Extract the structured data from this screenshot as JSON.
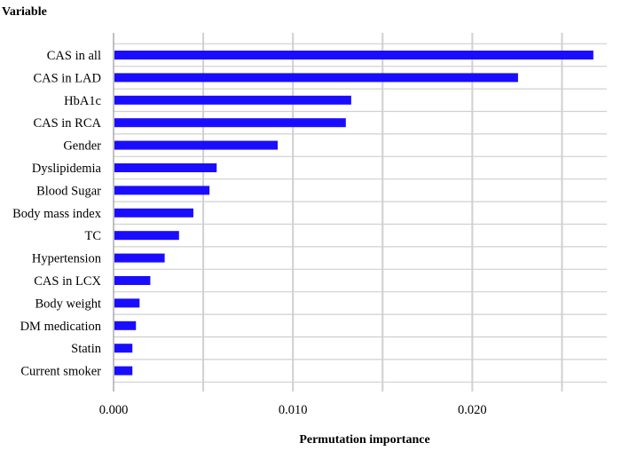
{
  "chart_data": {
    "type": "bar",
    "orientation": "horizontal",
    "ylabel": "Variable",
    "xlabel": "Permutation importance",
    "categories": [
      "CAS in all",
      "CAS in LAD",
      "HbA1c",
      "CAS in RCA",
      "Gender",
      "Dyslipidemia",
      "Blood Sugar",
      "Body mass index",
      "TC",
      "Hypertension",
      "CAS in LCX",
      "Body weight",
      "DM medication",
      "Statin",
      "Current smoker"
    ],
    "values": [
      0.0267,
      0.0225,
      0.0132,
      0.0129,
      0.0091,
      0.0057,
      0.0053,
      0.0044,
      0.0036,
      0.0028,
      0.002,
      0.0014,
      0.0012,
      0.001,
      0.001
    ],
    "xlim": [
      0,
      0.0275
    ],
    "xticks": [
      0.0,
      0.005,
      0.01,
      0.015,
      0.02,
      0.025
    ],
    "xtick_labels": [
      "0.000",
      "0.010",
      "0.020"
    ],
    "xtick_labeled_values": [
      0.0,
      0.01,
      0.02
    ],
    "grid": true,
    "colors": {
      "bar": "#1a0dff",
      "grid": "#d0d0d0",
      "axis": "#808080"
    }
  }
}
